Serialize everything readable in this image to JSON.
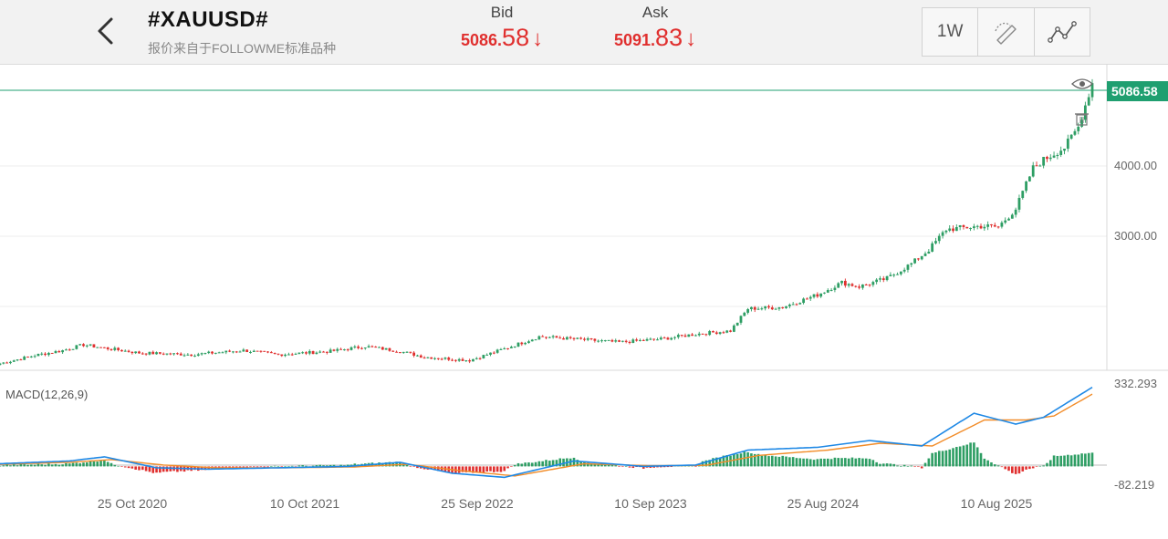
{
  "header": {
    "symbol": "#XAUUSD#",
    "subtitle": "报价来自于FOLLOWME标准品种",
    "bid": {
      "label": "Bid",
      "int_part": "5086.",
      "dec_part": "58",
      "arrow": "↓"
    },
    "ask": {
      "label": "Ask",
      "int_part": "5091.",
      "dec_part": "83",
      "arrow": "↓"
    },
    "toolbar": {
      "timeframe": "1W",
      "icons": [
        "draw-tool-icon",
        "indicator-line-icon"
      ]
    }
  },
  "price_axis": {
    "current_price": "5086.58",
    "ticks": [
      "4000.00",
      "3000.00"
    ]
  },
  "macd": {
    "label": "MACD(12,26,9)",
    "max_label": "332.293",
    "min_label": "-82.219"
  },
  "x_axis": {
    "dates": [
      "25 Oct 2020",
      "10 Oct 2021",
      "25 Sep 2022",
      "10 Sep 2023",
      "25 Aug 2024",
      "10 Aug 2025"
    ]
  },
  "colors": {
    "up": "#2e9e64",
    "down": "#e0302f",
    "price_line": "#1f9f70",
    "dif": "#1e88e5",
    "dea": "#f28c28",
    "quote": "#e0302f"
  },
  "chart_data": {
    "type": "candlestick",
    "price_range": [
      1600,
      5300
    ],
    "macd_range": [
      -82.219,
      332.293
    ],
    "close_anchors": [
      {
        "i": 0,
        "v": 1660
      },
      {
        "i": 10,
        "v": 1760
      },
      {
        "i": 18,
        "v": 1820
      },
      {
        "i": 24,
        "v": 1890
      },
      {
        "i": 30,
        "v": 1850
      },
      {
        "i": 40,
        "v": 1790
      },
      {
        "i": 55,
        "v": 1770
      },
      {
        "i": 70,
        "v": 1820
      },
      {
        "i": 80,
        "v": 1770
      },
      {
        "i": 95,
        "v": 1810
      },
      {
        "i": 105,
        "v": 1870
      },
      {
        "i": 115,
        "v": 1810
      },
      {
        "i": 122,
        "v": 1740
      },
      {
        "i": 135,
        "v": 1700
      },
      {
        "i": 145,
        "v": 1840
      },
      {
        "i": 155,
        "v": 1990
      },
      {
        "i": 165,
        "v": 1960
      },
      {
        "i": 178,
        "v": 1920
      },
      {
        "i": 190,
        "v": 1960
      },
      {
        "i": 200,
        "v": 2020
      },
      {
        "i": 210,
        "v": 2060
      },
      {
        "i": 215,
        "v": 2330
      },
      {
        "i": 225,
        "v": 2350
      },
      {
        "i": 235,
        "v": 2500
      },
      {
        "i": 242,
        "v": 2650
      },
      {
        "i": 247,
        "v": 2600
      },
      {
        "i": 255,
        "v": 2700
      },
      {
        "i": 262,
        "v": 2880
      },
      {
        "i": 267,
        "v": 3050
      },
      {
        "i": 272,
        "v": 3300
      },
      {
        "i": 277,
        "v": 3320
      },
      {
        "i": 282,
        "v": 3340
      },
      {
        "i": 287,
        "v": 3330
      },
      {
        "i": 292,
        "v": 3550
      },
      {
        "i": 297,
        "v": 4050
      },
      {
        "i": 300,
        "v": 4150
      },
      {
        "i": 306,
        "v": 4300
      },
      {
        "i": 310,
        "v": 4550
      },
      {
        "i": 314,
        "v": 5086.58
      }
    ],
    "macd_dif_anchors": [
      {
        "i": 0,
        "v": 10
      },
      {
        "i": 20,
        "v": 20
      },
      {
        "i": 30,
        "v": 35
      },
      {
        "i": 45,
        "v": -5
      },
      {
        "i": 60,
        "v": -10
      },
      {
        "i": 80,
        "v": -5
      },
      {
        "i": 100,
        "v": 0
      },
      {
        "i": 115,
        "v": 15
      },
      {
        "i": 130,
        "v": -25
      },
      {
        "i": 145,
        "v": -40
      },
      {
        "i": 165,
        "v": 20
      },
      {
        "i": 185,
        "v": 0
      },
      {
        "i": 200,
        "v": 5
      },
      {
        "i": 215,
        "v": 60
      },
      {
        "i": 235,
        "v": 70
      },
      {
        "i": 250,
        "v": 95
      },
      {
        "i": 265,
        "v": 75
      },
      {
        "i": 280,
        "v": 195
      },
      {
        "i": 292,
        "v": 155
      },
      {
        "i": 300,
        "v": 180
      },
      {
        "i": 314,
        "v": 290
      }
    ],
    "macd_dea_anchors": [
      {
        "i": 0,
        "v": 8
      },
      {
        "i": 20,
        "v": 15
      },
      {
        "i": 32,
        "v": 25
      },
      {
        "i": 47,
        "v": 5
      },
      {
        "i": 62,
        "v": -5
      },
      {
        "i": 82,
        "v": -5
      },
      {
        "i": 102,
        "v": -2
      },
      {
        "i": 117,
        "v": 8
      },
      {
        "i": 132,
        "v": -15
      },
      {
        "i": 148,
        "v": -35
      },
      {
        "i": 168,
        "v": 10
      },
      {
        "i": 188,
        "v": 2
      },
      {
        "i": 203,
        "v": 4
      },
      {
        "i": 218,
        "v": 40
      },
      {
        "i": 238,
        "v": 60
      },
      {
        "i": 253,
        "v": 85
      },
      {
        "i": 268,
        "v": 75
      },
      {
        "i": 283,
        "v": 170
      },
      {
        "i": 295,
        "v": 170
      },
      {
        "i": 303,
        "v": 185
      },
      {
        "i": 314,
        "v": 265
      }
    ]
  }
}
